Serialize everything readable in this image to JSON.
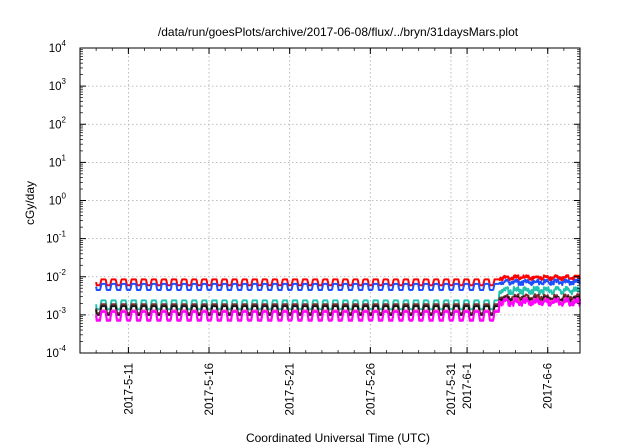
{
  "chart_data": {
    "type": "line",
    "title": "/data/run/goesPlots/archive/2017-06-08/flux/../bryn/31daysMars.plot",
    "xlabel": "Coordinated Universal Time (UTC)",
    "ylabel": "cGy/day",
    "y_scale": "log",
    "ylim": [
      0.0001,
      10000
    ],
    "y_ticks": [
      {
        "base": "10",
        "exp": "-4",
        "value": 0.0001
      },
      {
        "base": "10",
        "exp": "-3",
        "value": 0.001
      },
      {
        "base": "10",
        "exp": "-2",
        "value": 0.01
      },
      {
        "base": "10",
        "exp": "-1",
        "value": 0.1
      },
      {
        "base": "10",
        "exp": "0",
        "value": 1
      },
      {
        "base": "10",
        "exp": "1",
        "value": 10
      },
      {
        "base": "10",
        "exp": "2",
        "value": 100
      },
      {
        "base": "10",
        "exp": "3",
        "value": 1000
      },
      {
        "base": "10",
        "exp": "4",
        "value": 10000
      }
    ],
    "xlim": [
      "2017-05-08",
      "2017-06-08"
    ],
    "x_ticks": [
      "2017-5-11",
      "2017-5-16",
      "2017-5-21",
      "2017-5-26",
      "2017-5-31",
      "2017-6-1",
      "2017-6-6"
    ],
    "x_tick_dates": [
      "2017-05-11",
      "2017-05-16",
      "2017-05-21",
      "2017-05-26",
      "2017-05-31",
      "2017-06-01",
      "2017-06-06"
    ],
    "grid": true,
    "legend": "none",
    "series": [
      {
        "color": "#ff0000",
        "base": 0.006,
        "peak": 0.0085,
        "late_base": 0.0075,
        "late_peak": 0.011
      },
      {
        "color": "#1e4fff",
        "base": 0.0045,
        "peak": 0.0065,
        "late_base": 0.0055,
        "late_peak": 0.0085
      },
      {
        "color": "#22c3b3",
        "base": 0.0014,
        "peak": 0.0024,
        "late_base": 0.003,
        "late_peak": 0.0055
      },
      {
        "color": "#7a2d2d",
        "base": 0.0011,
        "peak": 0.0019,
        "late_base": 0.002,
        "late_peak": 0.0035
      },
      {
        "color": "#1a1a1a",
        "base": 0.001,
        "peak": 0.0017,
        "late_base": 0.0018,
        "late_peak": 0.003
      },
      {
        "color": "#ff33cc",
        "base": 0.00075,
        "peak": 0.0013,
        "late_base": 0.0016,
        "late_peak": 0.0028
      },
      {
        "color": "#ff00ff",
        "base": 0.0007,
        "peak": 0.0012,
        "late_base": 0.0015,
        "late_peak": 0.0026
      }
    ],
    "cycle_days": 0.625,
    "transition_date": "2017-06-03"
  }
}
